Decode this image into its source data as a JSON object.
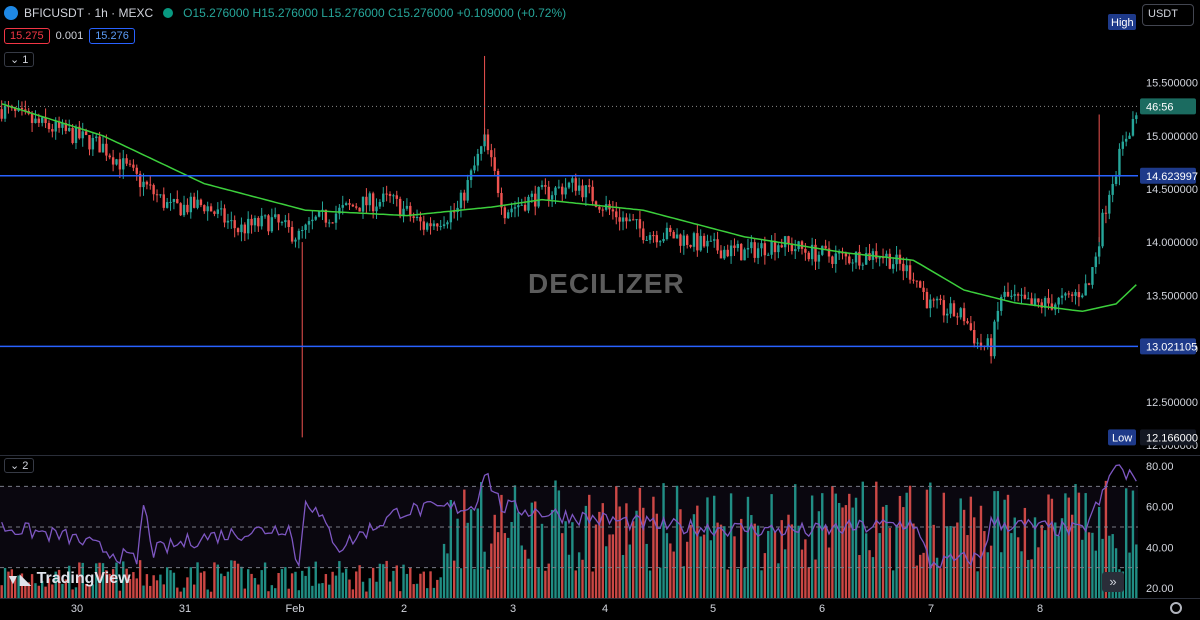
{
  "legend": {
    "symbol": "BFICUSDT · 1h · MEXC",
    "ohlc": "O15.276000 H15.276000 L15.276000 C15.276000 +0.109000 (+0.72%)"
  },
  "pricebox": {
    "bid": "15.275",
    "spread": "0.001",
    "ask": "15.276"
  },
  "pane_tags": {
    "main": "1",
    "rsi": "2"
  },
  "currency": "USDT",
  "watermark": "DECILIZER",
  "branding": "TradingView",
  "colors": {
    "up": "#26a69a",
    "down": "#ef5350",
    "ma": "#3ccf3c",
    "hline": "#2962ff",
    "rsi": "#7e57c2"
  },
  "chart_data": [
    {
      "type": "candlestick",
      "x_tick_labels": [
        "30",
        "31",
        "Feb",
        "2",
        "3",
        "4",
        "5",
        "6",
        "7",
        "8"
      ],
      "y_ticks": [
        12.5,
        13.0,
        13.5,
        14.0,
        14.5,
        15.0,
        15.5
      ],
      "y_tick_labels": [
        "12.500000",
        "13.000000",
        "13.500000",
        "14.000000",
        "14.500000",
        "15.000000",
        "15.500000"
      ],
      "ylim": [
        12.0,
        15.9
      ],
      "high": {
        "label": "High",
        "value": 15.7
      },
      "low": {
        "label": "Low",
        "value": 12.166
      },
      "low_label": "12.166000",
      "last_price": 15.276,
      "countdown": "46:56",
      "horizontal_lines": [
        {
          "value": 14.623997,
          "label": "14.623997"
        },
        {
          "value": 13.021105,
          "label": "13.021105"
        }
      ],
      "price_anchors": [
        [
          0,
          15.25
        ],
        [
          10,
          15.12
        ],
        [
          20,
          15.02
        ],
        [
          30,
          14.9
        ],
        [
          40,
          14.6
        ],
        [
          50,
          14.32
        ],
        [
          60,
          14.35
        ],
        [
          70,
          14.12
        ],
        [
          80,
          14.2
        ],
        [
          88,
          14.05
        ],
        [
          93,
          14.2
        ],
        [
          105,
          14.35
        ],
        [
          115,
          14.4
        ],
        [
          125,
          14.15
        ],
        [
          135,
          14.3
        ],
        [
          143,
          14.95
        ],
        [
          149,
          14.3
        ],
        [
          160,
          14.45
        ],
        [
          170,
          14.55
        ],
        [
          180,
          14.3
        ],
        [
          190,
          14.1
        ],
        [
          200,
          14.05
        ],
        [
          210,
          13.95
        ],
        [
          220,
          13.9
        ],
        [
          230,
          14.0
        ],
        [
          240,
          13.9
        ],
        [
          250,
          13.85
        ],
        [
          260,
          13.9
        ],
        [
          270,
          13.7
        ],
        [
          275,
          13.4
        ],
        [
          285,
          13.3
        ],
        [
          289,
          13.05
        ],
        [
          293,
          13.0
        ],
        [
          296,
          13.5
        ],
        [
          305,
          13.4
        ],
        [
          315,
          13.45
        ],
        [
          322,
          13.6
        ],
        [
          328,
          14.5
        ],
        [
          333,
          15.0
        ],
        [
          336,
          15.2
        ]
      ],
      "ma_anchors": [
        [
          0,
          15.3
        ],
        [
          30,
          15.0
        ],
        [
          60,
          14.55
        ],
        [
          90,
          14.3
        ],
        [
          120,
          14.25
        ],
        [
          145,
          14.33
        ],
        [
          160,
          14.4
        ],
        [
          190,
          14.3
        ],
        [
          220,
          14.05
        ],
        [
          250,
          13.9
        ],
        [
          270,
          13.83
        ],
        [
          285,
          13.55
        ],
        [
          300,
          13.43
        ],
        [
          320,
          13.35
        ],
        [
          330,
          13.42
        ],
        [
          336,
          13.6
        ]
      ]
    },
    {
      "type": "bar",
      "name": "volume/RSI pane",
      "y_ticks": [
        20,
        40,
        60,
        80
      ],
      "y_tick_labels": [
        "20.00",
        "40.00",
        "60.00",
        "80.00"
      ],
      "ylim": [
        15,
        84
      ],
      "rsi_levels": [
        70,
        50,
        30
      ],
      "rsi_anchors": [
        [
          0,
          50
        ],
        [
          20,
          45
        ],
        [
          40,
          33
        ],
        [
          42,
          60
        ],
        [
          45,
          38
        ],
        [
          60,
          45
        ],
        [
          85,
          50
        ],
        [
          88,
          30
        ],
        [
          90,
          65
        ],
        [
          100,
          40
        ],
        [
          115,
          55
        ],
        [
          118,
          58
        ],
        [
          140,
          60
        ],
        [
          143,
          78
        ],
        [
          148,
          60
        ],
        [
          170,
          55
        ],
        [
          200,
          50
        ],
        [
          240,
          48
        ],
        [
          270,
          52
        ],
        [
          275,
          32
        ],
        [
          290,
          35
        ],
        [
          293,
          52
        ],
        [
          320,
          48
        ],
        [
          326,
          65
        ],
        [
          330,
          82
        ],
        [
          333,
          74
        ],
        [
          336,
          76
        ]
      ]
    }
  ]
}
